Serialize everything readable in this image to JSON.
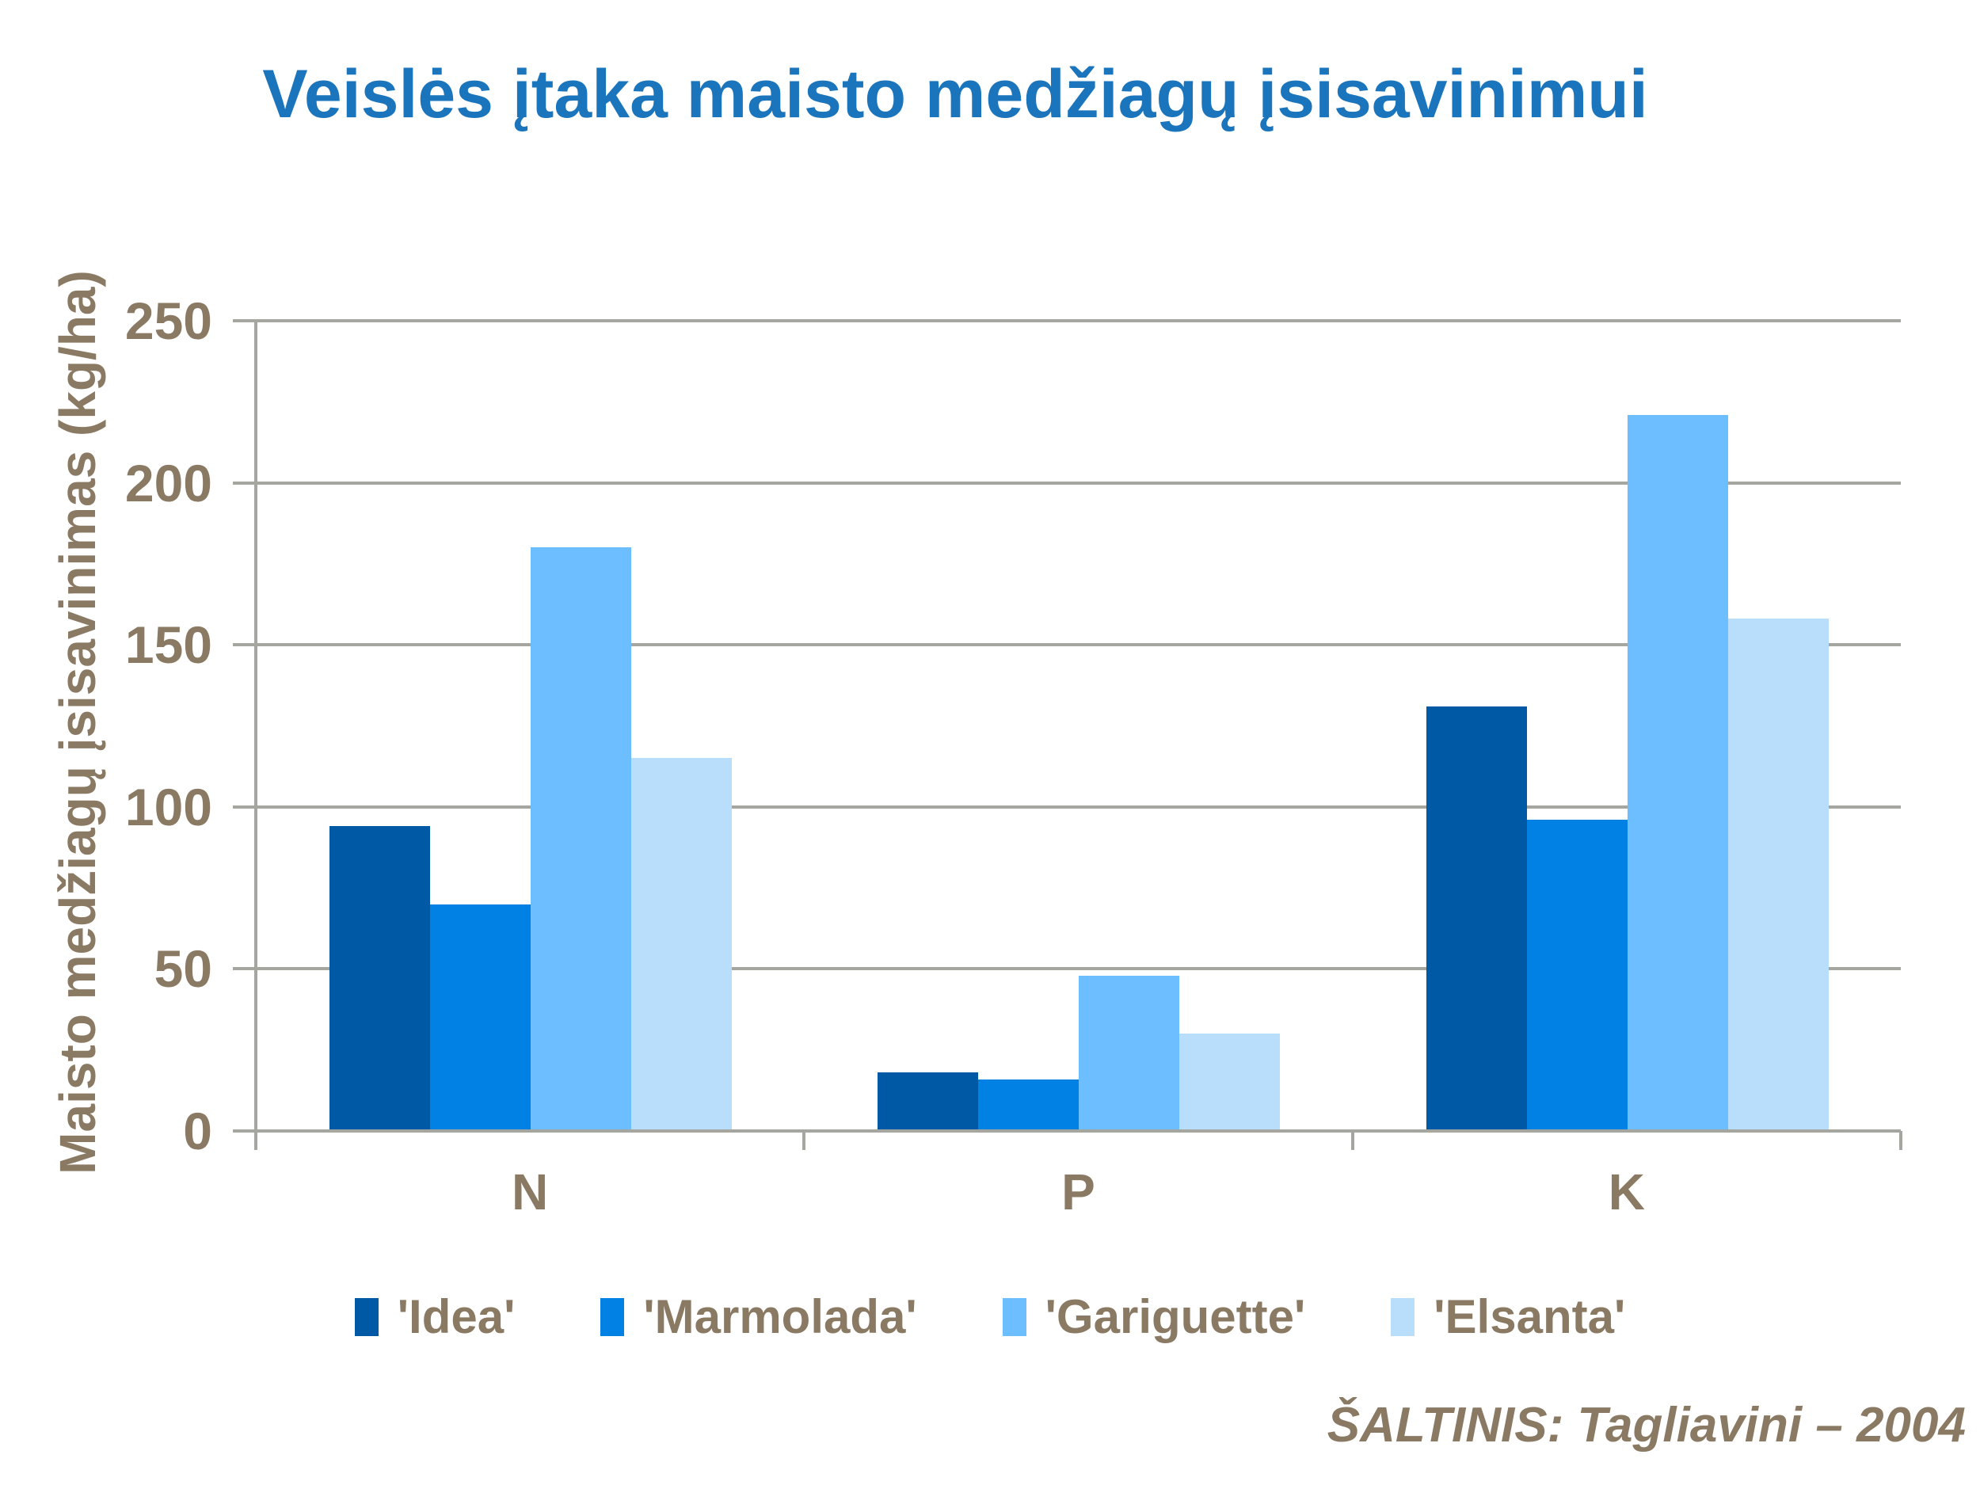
{
  "chart_data": {
    "type": "bar",
    "title": "Veislės įtaka maisto medžiagų įsisavinimui",
    "xlabel": "",
    "ylabel": "Maisto medžiagų įsisavinimas (kg/ha)",
    "categories": [
      "N",
      "P",
      "K"
    ],
    "series": [
      {
        "name": "'Idea'",
        "color": "#0059A5",
        "values": [
          94,
          18,
          131
        ]
      },
      {
        "name": "'Marmolada'",
        "color": "#0081E3",
        "values": [
          70,
          16,
          96
        ]
      },
      {
        "name": "'Gariguette'",
        "color": "#6DBEFF",
        "values": [
          180,
          48,
          221
        ]
      },
      {
        "name": "'Elsanta'",
        "color": "#B8DEFB",
        "values": [
          115,
          30,
          158
        ]
      }
    ],
    "ylim": [
      0,
      250
    ],
    "yticks": [
      0,
      50,
      100,
      150,
      200,
      250
    ],
    "grid": true,
    "legend_position": "bottom"
  },
  "source": "ŠALTINIS: Tagliavini – 2004",
  "colors": {
    "title_blue": "#1B75BC",
    "text_brown": "#8A7963",
    "axis_gray": "#A6A6A1",
    "background": "#FFFFFF"
  }
}
